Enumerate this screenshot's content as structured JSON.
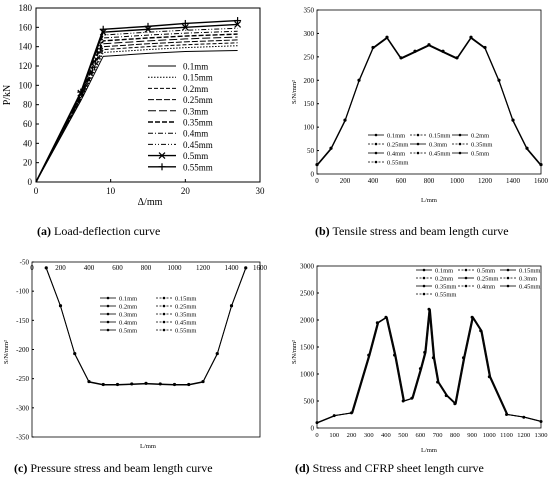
{
  "figure": {
    "captions": [
      {
        "label": "(a)",
        "text": "Load-deflection curve"
      },
      {
        "label": "(b)",
        "text": "Tensile stress and beam length curve"
      },
      {
        "label": "(c)",
        "text": "Pressure stress and beam length curve"
      },
      {
        "label": "(d)",
        "text": "Stress and CFRP sheet length curve"
      }
    ]
  },
  "chart_data": [
    {
      "id": "a",
      "type": "line",
      "xlabel": "Δ/mm",
      "ylabel": "P/kN",
      "xlim": [
        0,
        30
      ],
      "ylim": [
        0,
        180
      ],
      "xticks": [
        0,
        10,
        20,
        30
      ],
      "yticks": [
        0,
        20,
        40,
        60,
        80,
        100,
        120,
        140,
        160,
        180
      ],
      "grid": false,
      "legend": "inside-right",
      "series": [
        {
          "name": "0.1mm",
          "style": "solid-thin",
          "x": [
            0,
            6,
            9,
            15,
            20,
            27
          ],
          "y": [
            0,
            84,
            130,
            133,
            135,
            136
          ]
        },
        {
          "name": "0.15mm",
          "style": "dotted",
          "x": [
            0,
            6,
            9,
            15,
            20,
            27
          ],
          "y": [
            0,
            85,
            134,
            137,
            139,
            141
          ]
        },
        {
          "name": "0.2mm",
          "style": "dashed",
          "x": [
            0,
            6,
            9,
            15,
            20,
            27
          ],
          "y": [
            0,
            86,
            137,
            140,
            142,
            144
          ]
        },
        {
          "name": "0.25mm",
          "style": "longdash",
          "x": [
            0,
            6,
            9,
            15,
            20,
            27
          ],
          "y": [
            0,
            87,
            140,
            143,
            145,
            147
          ]
        },
        {
          "name": "0.3mm",
          "style": "dashed-long",
          "x": [
            0,
            6,
            9,
            15,
            20,
            27
          ],
          "y": [
            0,
            88,
            143,
            146,
            148,
            150
          ]
        },
        {
          "name": "0.35mm",
          "style": "dashed-bold",
          "x": [
            0,
            6,
            9,
            15,
            20,
            27
          ],
          "y": [
            0,
            89,
            146,
            149,
            151,
            153
          ]
        },
        {
          "name": "0.4mm",
          "style": "dashdot",
          "x": [
            0,
            6,
            9,
            15,
            20,
            27
          ],
          "y": [
            0,
            90,
            149,
            152,
            154,
            156
          ]
        },
        {
          "name": "0.45mm",
          "style": "dashdotdot",
          "x": [
            0,
            6,
            9,
            15,
            20,
            27
          ],
          "y": [
            0,
            91,
            152,
            155,
            157,
            159
          ]
        },
        {
          "name": "0.5mm",
          "style": "x-marker",
          "x": [
            0,
            6,
            9,
            15,
            20,
            27
          ],
          "y": [
            0,
            92,
            155,
            158,
            160,
            163
          ]
        },
        {
          "name": "0.55mm",
          "style": "plus-marker",
          "x": [
            0,
            6,
            9,
            15,
            20,
            27
          ],
          "y": [
            0,
            93,
            158,
            161,
            164,
            167
          ]
        }
      ]
    },
    {
      "id": "b",
      "type": "line",
      "xlabel": "L/mm",
      "ylabel": "S/N/mm²",
      "xlim": [
        0,
        1600
      ],
      "ylim": [
        0,
        350
      ],
      "xticks": [
        0,
        200,
        400,
        600,
        800,
        1000,
        1200,
        1400,
        1600
      ],
      "yticks": [
        0,
        50,
        100,
        150,
        200,
        250,
        300,
        350
      ],
      "grid": false,
      "legend": "inside-bottom",
      "legend_labels": [
        "0.1mm",
        "0.15mm",
        "0.2mm",
        "0.25mm",
        "0.3mm",
        "0.35mm",
        "0.4mm",
        "0.45mm",
        "0.5mm",
        "0.55mm"
      ],
      "x": [
        0,
        100,
        200,
        300,
        400,
        500,
        600,
        700,
        800,
        900,
        1000,
        1100,
        1200,
        1300,
        1400,
        1500,
        1600
      ],
      "y": [
        20,
        55,
        115,
        200,
        270,
        292,
        248,
        262,
        276,
        262,
        248,
        292,
        270,
        200,
        115,
        55,
        20
      ]
    },
    {
      "id": "c",
      "type": "line",
      "xlabel": "L/mm",
      "ylabel": "S/N/mm²",
      "xlim": [
        0,
        1600
      ],
      "ylim": [
        -350,
        -50
      ],
      "xticks": [
        0,
        200,
        400,
        600,
        800,
        1000,
        1200,
        1400,
        1600
      ],
      "yticks": [
        -50,
        -100,
        -150,
        -200,
        -250,
        -300,
        -350
      ],
      "grid": false,
      "legend": "inside-top",
      "legend_labels": [
        "0.1mm",
        "0.15mm",
        "0.2mm",
        "0.25mm",
        "0.3mm",
        "0.35mm",
        "0.4mm",
        "0.45mm",
        "0.5mm",
        "0.55mm"
      ],
      "x": [
        100,
        200,
        300,
        400,
        500,
        600,
        700,
        800,
        900,
        1000,
        1100,
        1200,
        1300,
        1400,
        1500
      ],
      "y": [
        -60,
        -125,
        -207,
        -255,
        -260,
        -260,
        -259,
        -258,
        -259,
        -260,
        -260,
        -255,
        -207,
        -125,
        -60
      ]
    },
    {
      "id": "d",
      "type": "line",
      "xlabel": "L/mm",
      "ylabel": "S/N/mm²",
      "xlim": [
        0,
        1300
      ],
      "ylim": [
        0,
        3000
      ],
      "xticks": [
        0,
        100,
        200,
        300,
        400,
        500,
        600,
        700,
        800,
        900,
        1000,
        1100,
        1200,
        1300
      ],
      "yticks": [
        0,
        500,
        1000,
        1500,
        2000,
        2500,
        3000
      ],
      "grid": false,
      "legend": "inside-top",
      "legend_labels": [
        "0.1mm",
        "0.5mm",
        "0.15mm",
        "0.2mm",
        "0.25mm",
        "0.3mm",
        "0.35mm",
        "0.4mm",
        "0.45mm",
        "0.55mm"
      ],
      "x": [
        0,
        100,
        200,
        300,
        350,
        400,
        450,
        500,
        550,
        600,
        625,
        650,
        675,
        700,
        750,
        800,
        850,
        900,
        950,
        1000,
        1100,
        1200,
        1300
      ],
      "y": [
        100,
        230,
        280,
        1350,
        1950,
        2050,
        1350,
        500,
        550,
        1100,
        1400,
        2200,
        1300,
        850,
        600,
        450,
        1300,
        2050,
        1800,
        950,
        250,
        200,
        120
      ]
    }
  ]
}
